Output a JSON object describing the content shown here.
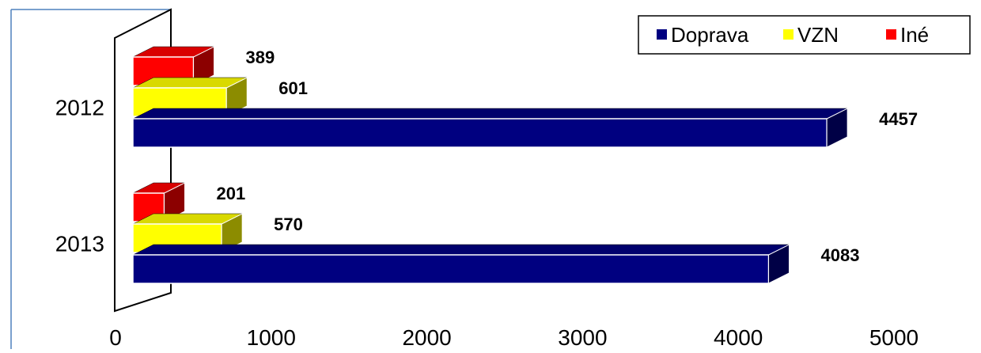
{
  "chart_data": {
    "type": "bar",
    "orientation": "horizontal",
    "three_d": true,
    "categories": [
      "2012",
      "2013"
    ],
    "series": [
      {
        "name": "Doprava",
        "color": "#000080",
        "values": [
          4457,
          4083
        ]
      },
      {
        "name": "VZN",
        "color": "#ffff00",
        "values": [
          601,
          570
        ]
      },
      {
        "name": "Iné",
        "color": "#ff0000",
        "values": [
          389,
          201
        ]
      }
    ],
    "xlim": [
      0,
      5000
    ],
    "xticks": [
      "0",
      "1000",
      "2000",
      "3000",
      "4000",
      "5000"
    ],
    "legend": {
      "position": "top-right",
      "items": [
        "Doprava",
        "VZN",
        "Iné"
      ]
    },
    "grid": false,
    "title": "",
    "xlabel": "",
    "ylabel": ""
  }
}
